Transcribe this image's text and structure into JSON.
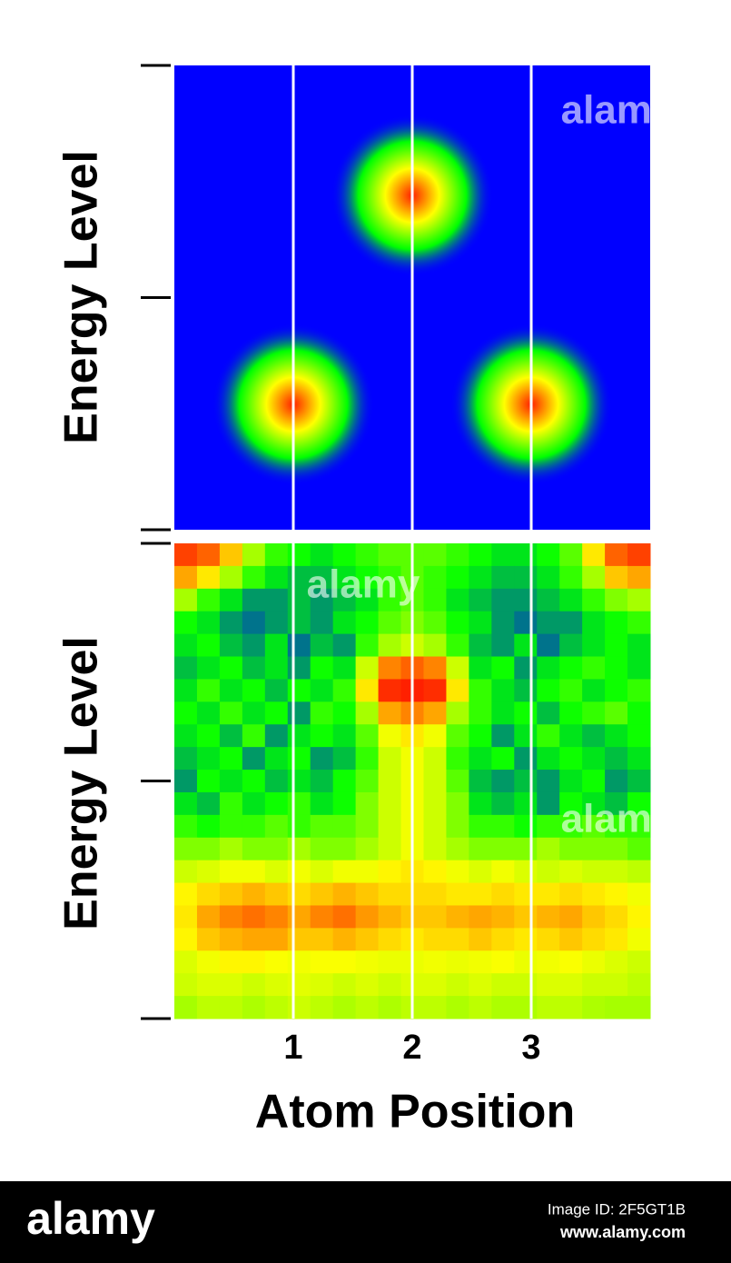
{
  "chart_data": [
    {
      "type": "peaks",
      "ylabel": "Energy Level",
      "xlim": [
        0,
        4
      ],
      "ylim": [
        0,
        1
      ],
      "yticks": [
        0,
        0.5,
        1
      ],
      "colormap": [
        "#0000ff",
        "#00ff00",
        "#ffff00",
        "#ff2000"
      ],
      "peaks": {
        "x": [
          1,
          2,
          3
        ],
        "y": [
          0.27,
          0.72,
          0.27
        ],
        "spread": [
          0.68,
          0.68,
          0.68
        ]
      }
    },
    {
      "type": "heatmap",
      "ylabel": "Energy Level",
      "xlabel": "Atom Position",
      "xlim": [
        0,
        4
      ],
      "ylim": [
        0,
        1
      ],
      "xticks": [
        1,
        2,
        3
      ],
      "yticks": [
        0,
        0.5,
        1
      ],
      "grid": true,
      "grid_color": "#ffffff",
      "colormap": [
        "#0000ff",
        "#00ff00",
        "#ffff00",
        "#ff2000"
      ],
      "z": [
        [
          0.95,
          0.9,
          0.75,
          0.55,
          0.4,
          0.35,
          0.3,
          0.35,
          0.4,
          0.45,
          0.45,
          0.45,
          0.4,
          0.35,
          0.3,
          0.3,
          0.35,
          0.45,
          0.7,
          0.9,
          0.95
        ],
        [
          0.8,
          0.7,
          0.55,
          0.4,
          0.3,
          0.25,
          0.25,
          0.3,
          0.35,
          0.4,
          0.45,
          0.4,
          0.35,
          0.3,
          0.25,
          0.25,
          0.3,
          0.4,
          0.55,
          0.75,
          0.8
        ],
        [
          0.55,
          0.4,
          0.3,
          0.2,
          0.2,
          0.25,
          0.2,
          0.25,
          0.3,
          0.4,
          0.45,
          0.4,
          0.3,
          0.25,
          0.2,
          0.2,
          0.25,
          0.3,
          0.4,
          0.5,
          0.55
        ],
        [
          0.35,
          0.3,
          0.2,
          0.15,
          0.2,
          0.25,
          0.2,
          0.3,
          0.35,
          0.45,
          0.5,
          0.45,
          0.35,
          0.3,
          0.2,
          0.15,
          0.2,
          0.2,
          0.3,
          0.35,
          0.4
        ],
        [
          0.3,
          0.35,
          0.25,
          0.2,
          0.3,
          0.15,
          0.25,
          0.2,
          0.4,
          0.55,
          0.6,
          0.55,
          0.4,
          0.25,
          0.2,
          0.3,
          0.15,
          0.25,
          0.3,
          0.35,
          0.3
        ],
        [
          0.25,
          0.3,
          0.35,
          0.25,
          0.3,
          0.2,
          0.35,
          0.3,
          0.6,
          0.85,
          0.9,
          0.85,
          0.6,
          0.3,
          0.35,
          0.2,
          0.3,
          0.35,
          0.4,
          0.35,
          0.3
        ],
        [
          0.3,
          0.4,
          0.3,
          0.35,
          0.25,
          0.35,
          0.3,
          0.4,
          0.7,
          0.98,
          1,
          0.98,
          0.7,
          0.4,
          0.3,
          0.25,
          0.35,
          0.4,
          0.3,
          0.35,
          0.4
        ],
        [
          0.35,
          0.3,
          0.4,
          0.3,
          0.35,
          0.2,
          0.4,
          0.35,
          0.55,
          0.8,
          0.85,
          0.8,
          0.55,
          0.4,
          0.3,
          0.35,
          0.25,
          0.35,
          0.4,
          0.45,
          0.35
        ],
        [
          0.3,
          0.35,
          0.25,
          0.4,
          0.2,
          0.3,
          0.35,
          0.3,
          0.45,
          0.65,
          0.7,
          0.65,
          0.45,
          0.35,
          0.2,
          0.3,
          0.4,
          0.3,
          0.25,
          0.3,
          0.35
        ],
        [
          0.25,
          0.3,
          0.35,
          0.2,
          0.3,
          0.35,
          0.2,
          0.25,
          0.4,
          0.6,
          0.65,
          0.6,
          0.4,
          0.3,
          0.35,
          0.2,
          0.3,
          0.35,
          0.3,
          0.25,
          0.3
        ],
        [
          0.2,
          0.35,
          0.3,
          0.35,
          0.25,
          0.3,
          0.25,
          0.35,
          0.45,
          0.6,
          0.65,
          0.6,
          0.45,
          0.25,
          0.2,
          0.25,
          0.2,
          0.3,
          0.35,
          0.2,
          0.25
        ],
        [
          0.3,
          0.25,
          0.4,
          0.3,
          0.35,
          0.4,
          0.3,
          0.35,
          0.5,
          0.6,
          0.65,
          0.6,
          0.5,
          0.3,
          0.25,
          0.3,
          0.2,
          0.35,
          0.3,
          0.25,
          0.35
        ],
        [
          0.4,
          0.35,
          0.4,
          0.4,
          0.45,
          0.4,
          0.45,
          0.45,
          0.5,
          0.6,
          0.65,
          0.6,
          0.5,
          0.4,
          0.4,
          0.35,
          0.4,
          0.4,
          0.45,
          0.4,
          0.4
        ],
        [
          0.5,
          0.5,
          0.55,
          0.5,
          0.5,
          0.55,
          0.5,
          0.5,
          0.55,
          0.6,
          0.65,
          0.6,
          0.55,
          0.5,
          0.5,
          0.5,
          0.55,
          0.5,
          0.5,
          0.5,
          0.45
        ],
        [
          0.6,
          0.62,
          0.65,
          0.65,
          0.62,
          0.65,
          0.62,
          0.65,
          0.65,
          0.68,
          0.7,
          0.68,
          0.65,
          0.62,
          0.65,
          0.62,
          0.6,
          0.62,
          0.6,
          0.6,
          0.58
        ],
        [
          0.68,
          0.72,
          0.75,
          0.78,
          0.75,
          0.72,
          0.75,
          0.78,
          0.75,
          0.72,
          0.72,
          0.72,
          0.7,
          0.7,
          0.72,
          0.7,
          0.7,
          0.72,
          0.7,
          0.68,
          0.65
        ],
        [
          0.7,
          0.8,
          0.85,
          0.88,
          0.85,
          0.8,
          0.85,
          0.88,
          0.82,
          0.78,
          0.75,
          0.75,
          0.78,
          0.8,
          0.78,
          0.75,
          0.78,
          0.8,
          0.75,
          0.72,
          0.68
        ],
        [
          0.68,
          0.75,
          0.78,
          0.8,
          0.8,
          0.75,
          0.75,
          0.78,
          0.75,
          0.72,
          0.7,
          0.72,
          0.72,
          0.75,
          0.72,
          0.7,
          0.72,
          0.75,
          0.72,
          0.7,
          0.65
        ],
        [
          0.62,
          0.65,
          0.68,
          0.68,
          0.66,
          0.65,
          0.66,
          0.66,
          0.65,
          0.64,
          0.64,
          0.65,
          0.64,
          0.65,
          0.66,
          0.64,
          0.65,
          0.66,
          0.64,
          0.62,
          0.6
        ],
        [
          0.6,
          0.62,
          0.62,
          0.6,
          0.62,
          0.63,
          0.62,
          0.6,
          0.62,
          0.6,
          0.62,
          0.62,
          0.6,
          0.62,
          0.6,
          0.6,
          0.62,
          0.62,
          0.6,
          0.6,
          0.58
        ],
        [
          0.55,
          0.58,
          0.58,
          0.56,
          0.58,
          0.6,
          0.58,
          0.56,
          0.58,
          0.56,
          0.58,
          0.58,
          0.56,
          0.58,
          0.56,
          0.56,
          0.58,
          0.58,
          0.56,
          0.55,
          0.55
        ]
      ]
    }
  ],
  "watermark": {
    "overlay": "alamy",
    "brand": "alamy",
    "image_id": "Image ID: 2F5GT1B",
    "url": "www.alamy.com"
  }
}
